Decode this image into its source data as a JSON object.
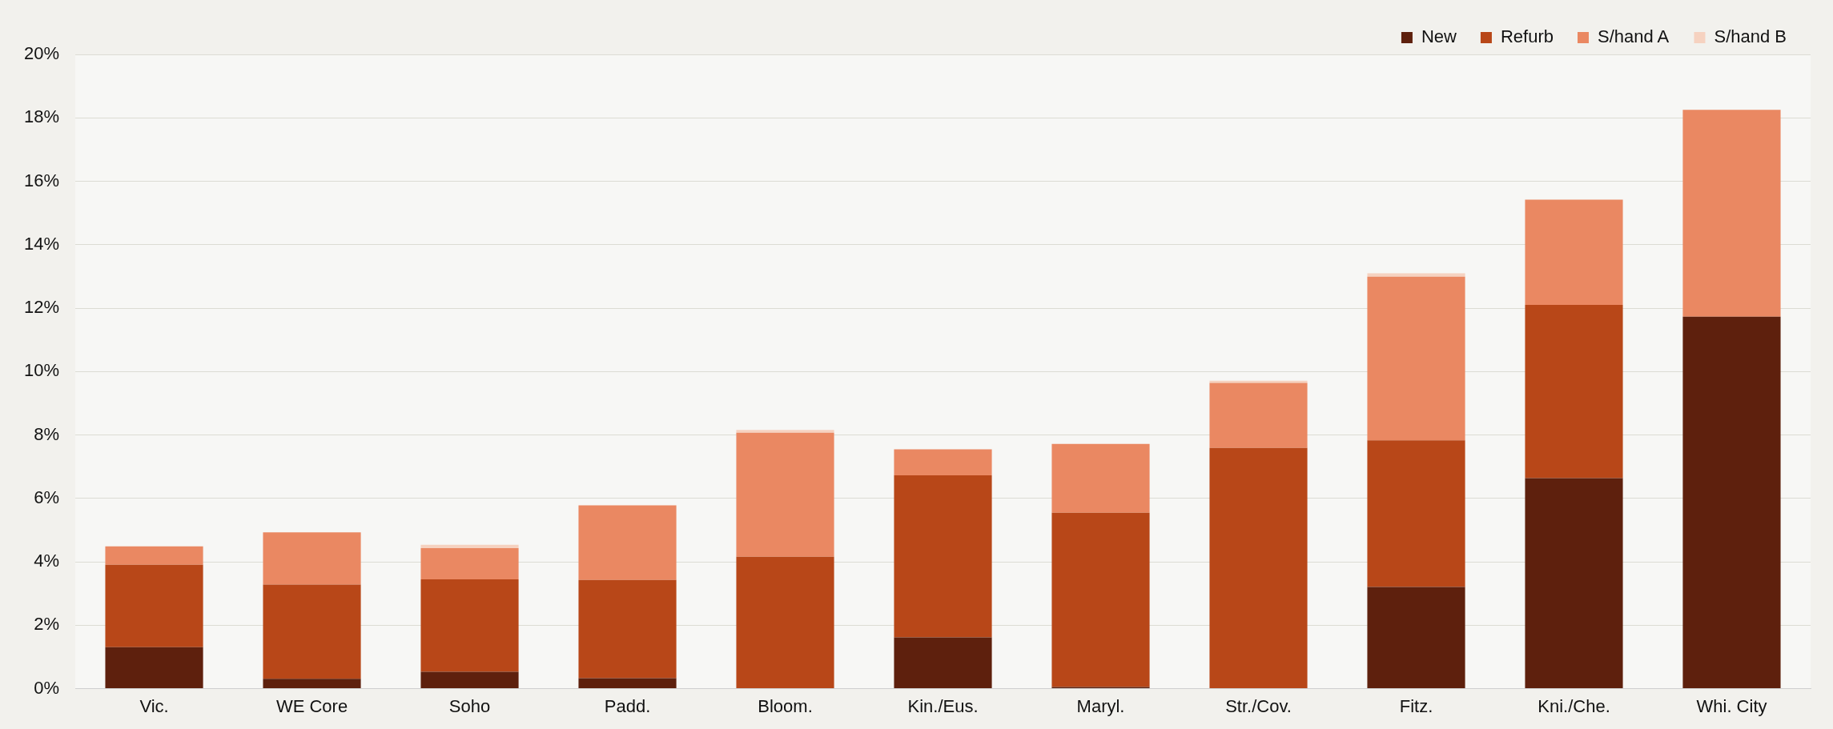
{
  "chart_data": {
    "type": "bar",
    "stacked": true,
    "categories": [
      "Vic.",
      "WE Core",
      "Soho",
      "Padd.",
      "Bloom.",
      "Kin./Eus.",
      "Maryl.",
      "Str./Cov.",
      "Fitz.",
      "Kni./Che.",
      "Whi. City"
    ],
    "series": [
      {
        "name": "New",
        "color": "#5e200d",
        "values": [
          1.31,
          0.31,
          0.53,
          0.33,
          0,
          1.62,
          0.05,
          0,
          3.21,
          6.64,
          11.73
        ]
      },
      {
        "name": "Refurb",
        "color": "#b84718",
        "values": [
          2.6,
          2.97,
          2.92,
          3.1,
          4.16,
          5.11,
          5.5,
          7.59,
          4.62,
          5.46,
          0
        ]
      },
      {
        "name": "S/hand A",
        "color": "#ea8862",
        "values": [
          0.58,
          1.65,
          0.98,
          2.35,
          3.91,
          0.82,
          2.17,
          2.05,
          5.16,
          3.32,
          6.52
        ]
      },
      {
        "name": "S/hand B",
        "color": "#f6d2c0",
        "values": [
          0,
          0,
          0.11,
          0,
          0.09,
          0,
          0,
          0.07,
          0.11,
          0,
          0
        ]
      }
    ],
    "ylim": [
      0,
      20
    ],
    "yticks": [
      {
        "value": 0,
        "label": "0%"
      },
      {
        "value": 2,
        "label": "2%"
      },
      {
        "value": 4,
        "label": "4%"
      },
      {
        "value": 6,
        "label": "6%"
      },
      {
        "value": 8,
        "label": "8%"
      },
      {
        "value": 10,
        "label": "10%"
      },
      {
        "value": 12,
        "label": "12%"
      },
      {
        "value": 14,
        "label": "14%"
      },
      {
        "value": 16,
        "label": "16%"
      },
      {
        "value": 18,
        "label": "18%"
      },
      {
        "value": 20,
        "label": "20%"
      }
    ],
    "grid": "y",
    "legend": "top right"
  }
}
